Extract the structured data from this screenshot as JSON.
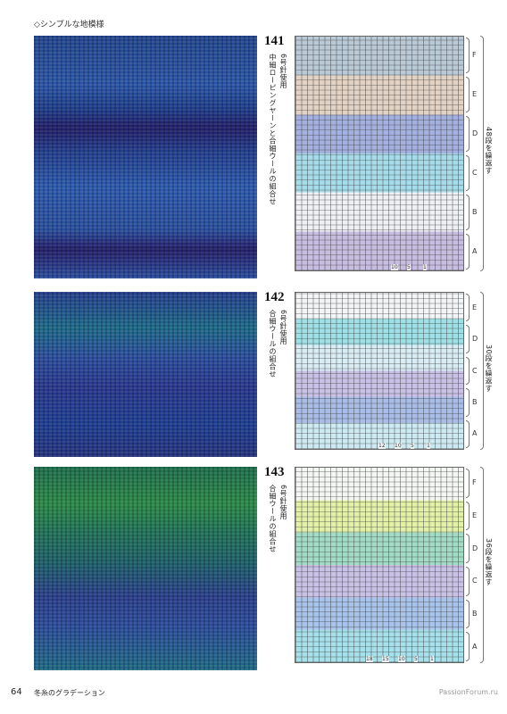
{
  "header": {
    "title": "◇シンプルな地模様"
  },
  "patterns": [
    {
      "number": "141",
      "needle": "6号針使用",
      "yarn": "中細ローピングヤーンと合細ウールの組合せ",
      "sections": [
        "F",
        "E",
        "D",
        "C",
        "B",
        "A"
      ],
      "repeat": "48段を繰返す",
      "stitch_numbers": [
        "10",
        "5",
        "1"
      ]
    },
    {
      "number": "142",
      "needle": "6号針使用",
      "yarn": "合細ウールの組合せ",
      "sections": [
        "E",
        "D",
        "C",
        "B",
        "A"
      ],
      "repeat": "30段を繰返す",
      "stitch_numbers": [
        "12",
        "10",
        "5",
        "1"
      ]
    },
    {
      "number": "143",
      "needle": "6号針使用",
      "yarn": "合細ウールの組合せ",
      "sections": [
        "F",
        "E",
        "D",
        "C",
        "B",
        "A"
      ],
      "repeat": "36段を繰返す",
      "stitch_numbers": [
        "18",
        "15",
        "10",
        "5",
        "1"
      ]
    }
  ],
  "footer": {
    "page": "64",
    "title": "冬糸のグラデーション",
    "watermark": "PassionForum.ru"
  }
}
